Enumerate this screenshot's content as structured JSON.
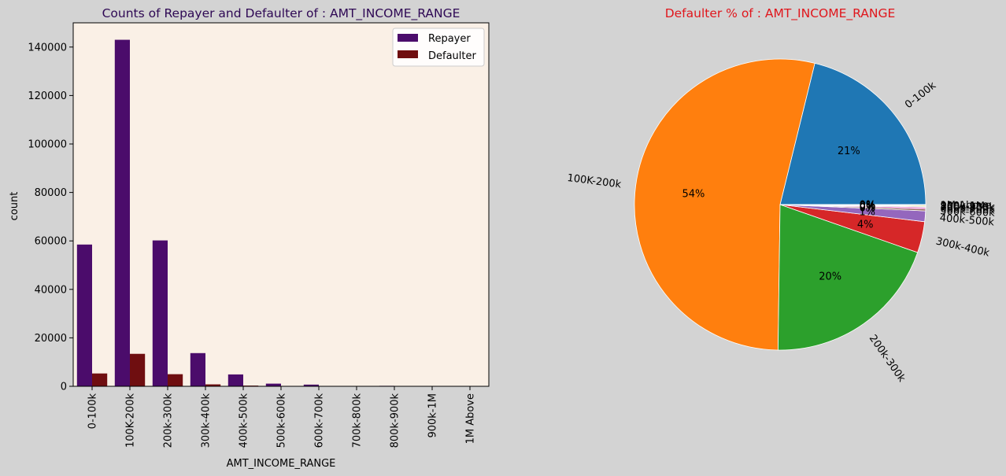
{
  "figure": {
    "background": "#d3d3d3"
  },
  "chart_data": [
    {
      "type": "bar",
      "title": "Counts of Repayer and Defaulter of : AMT_INCOME_RANGE",
      "xlabel": "AMT_INCOME_RANGE",
      "ylabel": "count",
      "ylim": [
        0,
        150000
      ],
      "yticks": [
        0,
        20000,
        40000,
        60000,
        80000,
        100000,
        120000,
        140000
      ],
      "categories": [
        "0-100k",
        "100K-200k",
        "200k-300k",
        "300k-400k",
        "400k-500k",
        "500k-600k",
        "600k-700k",
        "700k-800k",
        "800k-900k",
        "900k-1M",
        "1M Above"
      ],
      "series": [
        {
          "name": "Repayer",
          "color": "#4b0c6b",
          "values": [
            58500,
            143000,
            60200,
            13700,
            4900,
            1100,
            700,
            100,
            200,
            50,
            50
          ]
        },
        {
          "name": "Defaulter",
          "color": "#6f0e10",
          "values": [
            5300,
            13400,
            5000,
            800,
            300,
            60,
            30,
            10,
            20,
            5,
            5
          ]
        }
      ],
      "grid": false,
      "legend_position": "top-right",
      "plot_background": "#faf0e6",
      "title_color": "#2e0854"
    },
    {
      "type": "pie",
      "title": "Defaulter % of : AMT_INCOME_RANGE",
      "title_color": "#e0161c",
      "labels": [
        "0-100k",
        "100K-200k",
        "200k-300k",
        "300k-400k",
        "400k-500k",
        "500k-600k",
        "600k-700k",
        "700k-800k",
        "800k-900k",
        "900k-1M",
        "1M Above"
      ],
      "values": [
        21.4,
        54.2,
        20.1,
        3.5,
        1.2,
        0.2,
        0.2,
        0.1,
        0.1,
        0.05,
        0.05
      ],
      "pct_labels": [
        "21%",
        "54%",
        "20%",
        "4%",
        "1%",
        "0%",
        "0%",
        "0%",
        "0%",
        "0%",
        "0%"
      ],
      "colors": [
        "#1f77b4",
        "#ff7f0e",
        "#2ca02c",
        "#d62728",
        "#9467bd",
        "#8c564b",
        "#e377c2",
        "#7f7f7f",
        "#bcbd22",
        "#17becf",
        "#1f77b4"
      ]
    }
  ]
}
